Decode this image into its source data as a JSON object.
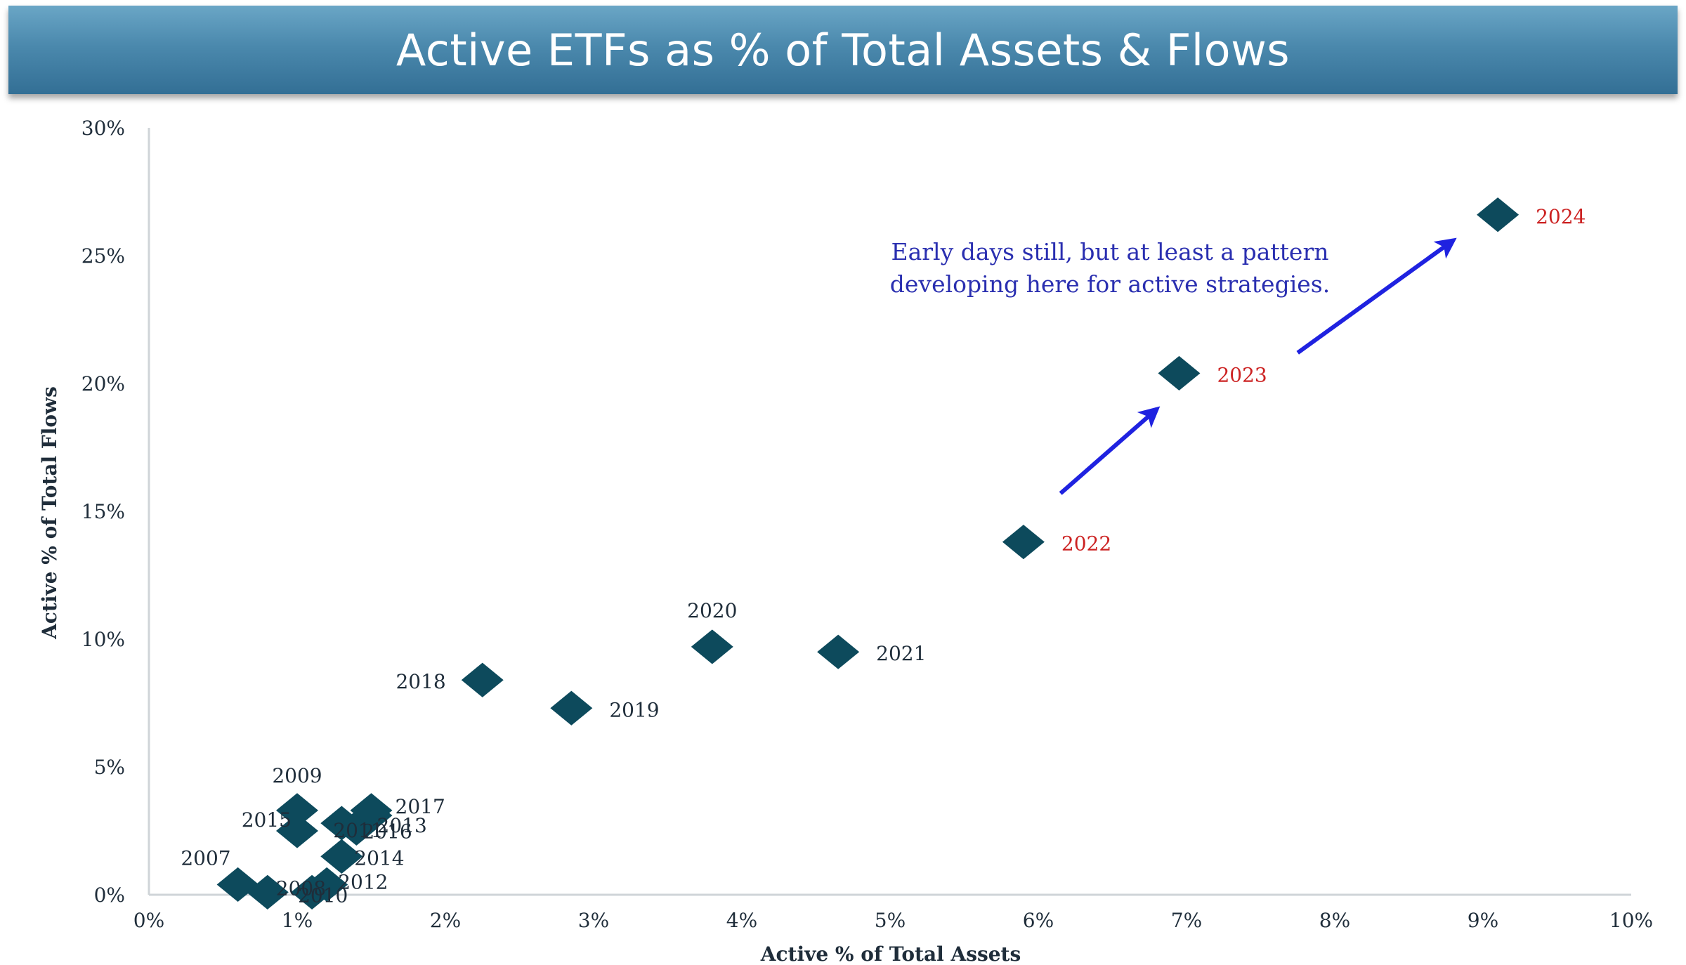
{
  "header": {
    "title": "Active ETFs as % of Total Assets & Flows"
  },
  "chart_data": {
    "type": "scatter",
    "title": "Active ETFs as % of Total Assets & Flows",
    "xlabel": "Active % of Total Assets",
    "ylabel": "Active % of Total Flows",
    "xlim": [
      0,
      10
    ],
    "ylim": [
      0,
      30
    ],
    "x_ticks": [
      "0%",
      "1%",
      "2%",
      "3%",
      "4%",
      "5%",
      "6%",
      "7%",
      "8%",
      "9%",
      "10%"
    ],
    "y_ticks": [
      "0%",
      "5%",
      "10%",
      "15%",
      "20%",
      "25%",
      "30%"
    ],
    "grid": false,
    "marker_color": "#0d4a5c",
    "points": [
      {
        "label": "2007",
        "x": 0.6,
        "y": 0.4,
        "label_color": "#1f2d3a"
      },
      {
        "label": "2008",
        "x": 0.8,
        "y": 0.1,
        "label_color": "#1f2d3a"
      },
      {
        "label": "2009",
        "x": 1.0,
        "y": 3.3,
        "label_color": "#1f2d3a"
      },
      {
        "label": "2010",
        "x": 1.1,
        "y": 0.1,
        "label_color": "#1f2d3a"
      },
      {
        "label": "2011",
        "x": 1.3,
        "y": 2.8,
        "label_color": "#1f2d3a"
      },
      {
        "label": "2012",
        "x": 1.2,
        "y": 0.4,
        "label_color": "#1f2d3a"
      },
      {
        "label": "2013",
        "x": 1.5,
        "y": 3.1,
        "label_color": "#1f2d3a"
      },
      {
        "label": "2014",
        "x": 1.3,
        "y": 1.5,
        "label_color": "#1f2d3a"
      },
      {
        "label": "2015",
        "x": 1.0,
        "y": 2.5,
        "label_color": "#1f2d3a"
      },
      {
        "label": "2016",
        "x": 1.4,
        "y": 2.6,
        "label_color": "#1f2d3a"
      },
      {
        "label": "2017",
        "x": 1.5,
        "y": 3.3,
        "label_color": "#1f2d3a"
      },
      {
        "label": "2018",
        "x": 2.25,
        "y": 8.4,
        "label_color": "#1f2d3a"
      },
      {
        "label": "2019",
        "x": 2.85,
        "y": 7.3,
        "label_color": "#1f2d3a"
      },
      {
        "label": "2020",
        "x": 3.8,
        "y": 9.7,
        "label_color": "#1f2d3a"
      },
      {
        "label": "2021",
        "x": 4.65,
        "y": 9.5,
        "label_color": "#1f2d3a"
      },
      {
        "label": "2022",
        "x": 5.9,
        "y": 13.8,
        "label_color": "#cc2222"
      },
      {
        "label": "2023",
        "x": 6.95,
        "y": 20.4,
        "label_color": "#cc2222"
      },
      {
        "label": "2024",
        "x": 9.1,
        "y": 26.6,
        "label_color": "#cc2222"
      }
    ],
    "annotation": {
      "lines": [
        "Early days still, but at least a pattern",
        "developing here for active strategies."
      ],
      "color": "#2a2fb0"
    },
    "arrows": [
      {
        "from": [
          6.15,
          15.7
        ],
        "to": [
          6.8,
          19.0
        ]
      },
      {
        "from": [
          7.75,
          21.2
        ],
        "to": [
          8.8,
          25.6
        ]
      }
    ],
    "arrow_color": "#1f22e0"
  }
}
